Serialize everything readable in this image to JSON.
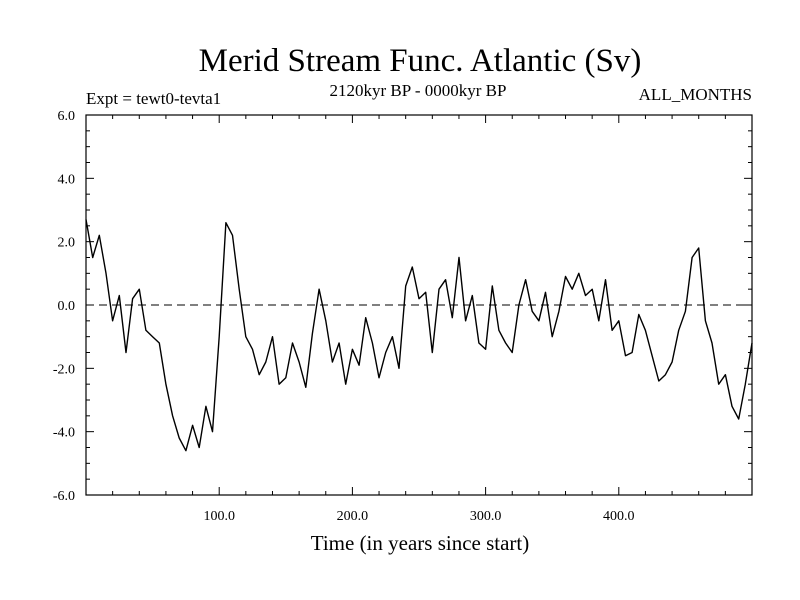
{
  "chart_data": {
    "type": "line",
    "title": "Merid Stream Func. Atlantic (Sv)",
    "subtitle_left": "Expt = tewt0-tevta1",
    "subtitle_center": "2120kyr BP - 0000kyr BP",
    "subtitle_right": "ALL_MONTHS",
    "xlabel": "Time (in years since start)",
    "ylabel": "",
    "xlim": [
      0,
      500
    ],
    "ylim": [
      -6,
      6
    ],
    "x_ticks": [
      100,
      200,
      300,
      400
    ],
    "x_tick_labels": [
      "100.0",
      "200.0",
      "300.0",
      "400.0"
    ],
    "y_ticks": [
      -6,
      -4,
      -2,
      0,
      2,
      4,
      6
    ],
    "y_tick_labels": [
      "-6.0",
      "-4.0",
      "-2.0",
      "0.0",
      "2.0",
      "4.0",
      "6.0"
    ],
    "reference_line": {
      "y": 0,
      "style": "dashed"
    },
    "series": [
      {
        "name": "Merid Stream Func. Atlantic",
        "color": "#000000",
        "x": [
          0,
          5,
          10,
          15,
          20,
          25,
          30,
          35,
          40,
          45,
          50,
          55,
          60,
          65,
          70,
          75,
          80,
          85,
          90,
          95,
          100,
          105,
          110,
          115,
          120,
          125,
          130,
          135,
          140,
          145,
          150,
          155,
          160,
          165,
          170,
          175,
          180,
          185,
          190,
          195,
          200,
          205,
          210,
          215,
          220,
          225,
          230,
          235,
          240,
          245,
          250,
          255,
          260,
          265,
          270,
          275,
          280,
          285,
          290,
          295,
          300,
          305,
          310,
          315,
          320,
          325,
          330,
          335,
          340,
          345,
          350,
          355,
          360,
          365,
          370,
          375,
          380,
          385,
          390,
          395,
          400,
          405,
          410,
          415,
          420,
          425,
          430,
          435,
          440,
          445,
          450,
          455,
          460,
          465,
          470,
          475,
          480,
          485,
          490,
          495,
          500
        ],
        "values": [
          2.7,
          1.5,
          2.2,
          1.0,
          -0.5,
          0.3,
          -1.5,
          0.2,
          0.5,
          -0.8,
          -1.0,
          -1.2,
          -2.5,
          -3.5,
          -4.2,
          -4.6,
          -3.8,
          -4.5,
          -3.2,
          -4.0,
          -1.0,
          2.6,
          2.2,
          0.5,
          -1.0,
          -1.4,
          -2.2,
          -1.8,
          -1.0,
          -2.5,
          -2.3,
          -1.2,
          -1.8,
          -2.6,
          -0.9,
          0.5,
          -0.5,
          -1.8,
          -1.2,
          -2.5,
          -1.4,
          -1.9,
          -0.4,
          -1.2,
          -2.3,
          -1.5,
          -1.0,
          -2.0,
          0.6,
          1.2,
          0.2,
          0.4,
          -1.5,
          0.5,
          0.8,
          -0.4,
          1.5,
          -0.5,
          0.3,
          -1.2,
          -1.4,
          0.6,
          -0.8,
          -1.2,
          -1.5,
          0.0,
          0.8,
          -0.2,
          -0.5,
          0.4,
          -1.0,
          -0.2,
          0.9,
          0.5,
          1.0,
          0.3,
          0.5,
          -0.5,
          0.8,
          -0.8,
          -0.5,
          -1.6,
          -1.5,
          -0.3,
          -0.8,
          -1.6,
          -2.4,
          -2.2,
          -1.8,
          -0.8,
          -0.2,
          1.5,
          1.8,
          -0.5,
          -1.2,
          -2.5,
          -2.2,
          -3.2,
          -3.6,
          -2.5,
          -1.2
        ]
      }
    ]
  }
}
